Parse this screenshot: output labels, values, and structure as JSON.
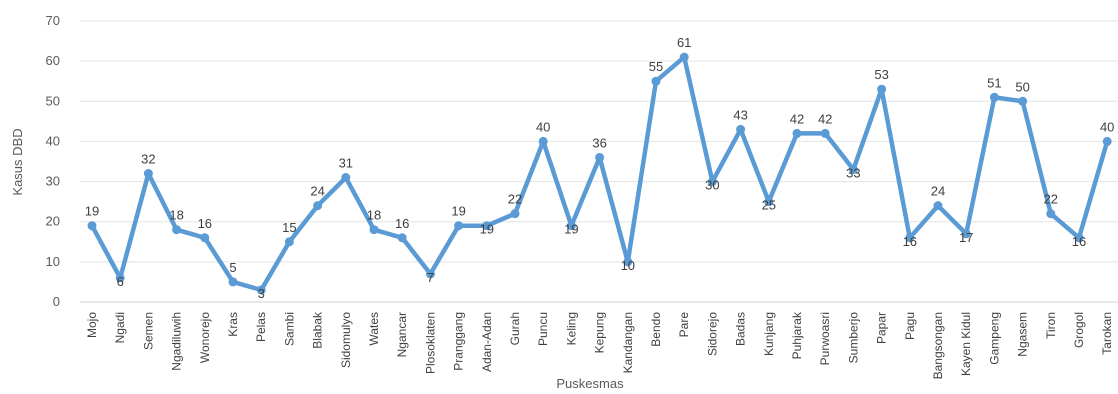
{
  "chart_data": {
    "type": "line",
    "title": "",
    "xlabel": "Puskesmas",
    "ylabel": "Kasus DBD",
    "ylim": [
      0,
      70
    ],
    "yticks": [
      0,
      10,
      20,
      30,
      40,
      50,
      60,
      70
    ],
    "grid": true,
    "legend": "none",
    "line_color": "#5b9bd5",
    "categories": [
      "Mojo",
      "Ngadi",
      "Semen",
      "Ngadiluwih",
      "Wonorejo",
      "Kras",
      "Pelas",
      "Sambi",
      "Blabak",
      "Sidomulyo",
      "Wates",
      "Ngancar",
      "Plosoklaten",
      "Pranggang",
      "Adan-Adan",
      "Gurah",
      "Puncu",
      "Keling",
      "Kepung",
      "Kandangan",
      "Bendo",
      "Pare",
      "Sidorejo",
      "Badas",
      "Kunjang",
      "Puhjarak",
      "Purwoasri",
      "Sumberjo",
      "Papar",
      "Pagu",
      "Bangsongan",
      "Kayen Kidul",
      "Gampeng",
      "Ngasem",
      "Tiron",
      "Grogol",
      "Tarokan"
    ],
    "series": [
      {
        "values": [
          19,
          6,
          32,
          18,
          16,
          5,
          3,
          15,
          24,
          31,
          18,
          16,
          7,
          19,
          19,
          22,
          40,
          19,
          36,
          10,
          55,
          61,
          30,
          43,
          25,
          42,
          42,
          33,
          53,
          16,
          24,
          17,
          51,
          50,
          22,
          16,
          40
        ]
      }
    ]
  }
}
